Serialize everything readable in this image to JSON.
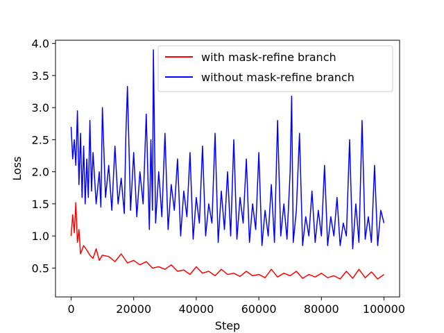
{
  "chart_data": {
    "type": "line",
    "title": "",
    "xlabel": "Step",
    "ylabel": "Loss",
    "xlim": [
      -5000,
      105000
    ],
    "ylim": [
      0.05,
      4.05
    ],
    "xticks": [
      0,
      20000,
      40000,
      60000,
      80000,
      100000
    ],
    "xtick_labels": [
      "0",
      "20000",
      "40000",
      "60000",
      "80000",
      "100000"
    ],
    "yticks": [
      0.5,
      1.0,
      1.5,
      2.0,
      2.5,
      3.0,
      3.5,
      4.0
    ],
    "ytick_labels": [
      "0.5",
      "1.0",
      "1.5",
      "2.0",
      "2.5",
      "3.0",
      "3.5",
      "4.0"
    ],
    "grid": false,
    "legend_position": "top-right",
    "series": [
      {
        "name": "with mask-refine branch",
        "color": "#ff0000",
        "x": [
          0,
          500,
          1000,
          1500,
          2000,
          2500,
          3000,
          4000,
          5000,
          6000,
          7000,
          8000,
          9000,
          10000,
          12000,
          14000,
          16000,
          18000,
          20000,
          22000,
          24000,
          26000,
          28000,
          30000,
          32000,
          34000,
          36000,
          38000,
          40000,
          42000,
          44000,
          46000,
          48000,
          50000,
          52000,
          54000,
          56000,
          58000,
          60000,
          62000,
          64000,
          66000,
          68000,
          70000,
          72000,
          74000,
          76000,
          78000,
          80000,
          82000,
          84000,
          86000,
          88000,
          90000,
          92000,
          94000,
          96000,
          98000,
          100000
        ],
        "y": [
          1.0,
          1.33,
          1.05,
          1.52,
          0.9,
          1.1,
          0.72,
          0.85,
          0.78,
          0.7,
          0.65,
          0.8,
          0.62,
          0.7,
          0.68,
          0.6,
          0.72,
          0.58,
          0.62,
          0.55,
          0.6,
          0.5,
          0.52,
          0.48,
          0.55,
          0.45,
          0.47,
          0.4,
          0.52,
          0.42,
          0.45,
          0.38,
          0.48,
          0.4,
          0.42,
          0.37,
          0.45,
          0.38,
          0.4,
          0.35,
          0.48,
          0.36,
          0.42,
          0.38,
          0.45,
          0.34,
          0.4,
          0.36,
          0.42,
          0.35,
          0.38,
          0.33,
          0.45,
          0.34,
          0.48,
          0.35,
          0.44,
          0.33,
          0.4
        ]
      },
      {
        "name": "without mask-refine branch",
        "color": "#0000ff",
        "x": [
          0,
          500,
          1000,
          1500,
          2000,
          2500,
          3000,
          3500,
          4000,
          4500,
          5000,
          5500,
          6000,
          6500,
          7000,
          8000,
          9000,
          9500,
          10000,
          11000,
          12000,
          13000,
          14000,
          15000,
          16000,
          17000,
          17500,
          18000,
          19000,
          20000,
          21000,
          22000,
          23000,
          24000,
          25000,
          25500,
          26000,
          26300,
          27000,
          28000,
          29000,
          30000,
          31000,
          32000,
          33000,
          34000,
          35000,
          36000,
          37000,
          38000,
          39000,
          40000,
          41000,
          42000,
          43000,
          44000,
          45000,
          46000,
          47000,
          48000,
          49000,
          50000,
          51000,
          52000,
          53000,
          54000,
          55000,
          56000,
          57000,
          58000,
          59000,
          60000,
          61000,
          62000,
          63000,
          64000,
          65000,
          66000,
          67000,
          68000,
          69000,
          70000,
          70500,
          71000,
          72000,
          73000,
          74000,
          75000,
          76000,
          77000,
          78000,
          79000,
          80000,
          81000,
          82000,
          83000,
          84000,
          85000,
          86000,
          87000,
          88000,
          89000,
          90000,
          91000,
          92000,
          93000,
          94000,
          95000,
          96000,
          97000,
          98000,
          99000,
          100000
        ],
        "y": [
          2.7,
          2.2,
          2.5,
          2.1,
          2.95,
          1.8,
          2.6,
          1.6,
          2.4,
          1.5,
          2.2,
          1.6,
          2.8,
          1.7,
          2.3,
          1.5,
          2.0,
          1.45,
          3.0,
          1.6,
          2.1,
          1.4,
          2.4,
          1.5,
          1.9,
          1.35,
          2.6,
          3.33,
          1.4,
          2.3,
          1.3,
          2.0,
          1.5,
          2.9,
          1.1,
          2.5,
          1.4,
          3.9,
          1.2,
          2.0,
          1.3,
          2.6,
          1.1,
          1.8,
          1.4,
          2.2,
          1.0,
          1.7,
          1.3,
          2.3,
          0.95,
          1.6,
          1.2,
          2.4,
          1.0,
          1.5,
          1.2,
          2.6,
          0.9,
          1.7,
          1.1,
          2.0,
          1.0,
          2.5,
          0.95,
          1.6,
          1.2,
          2.2,
          0.9,
          1.5,
          1.1,
          2.3,
          0.85,
          1.4,
          1.0,
          1.8,
          0.9,
          2.8,
          1.0,
          1.5,
          0.95,
          2.0,
          3.18,
          0.9,
          1.4,
          2.6,
          0.85,
          1.3,
          1.0,
          1.7,
          0.9,
          1.4,
          1.0,
          2.1,
          0.85,
          1.3,
          1.0,
          1.6,
          0.85,
          1.2,
          1.0,
          2.5,
          0.8,
          1.5,
          0.9,
          2.8,
          0.95,
          1.3,
          0.9,
          2.1,
          0.85,
          1.4,
          1.2
        ]
      }
    ]
  }
}
